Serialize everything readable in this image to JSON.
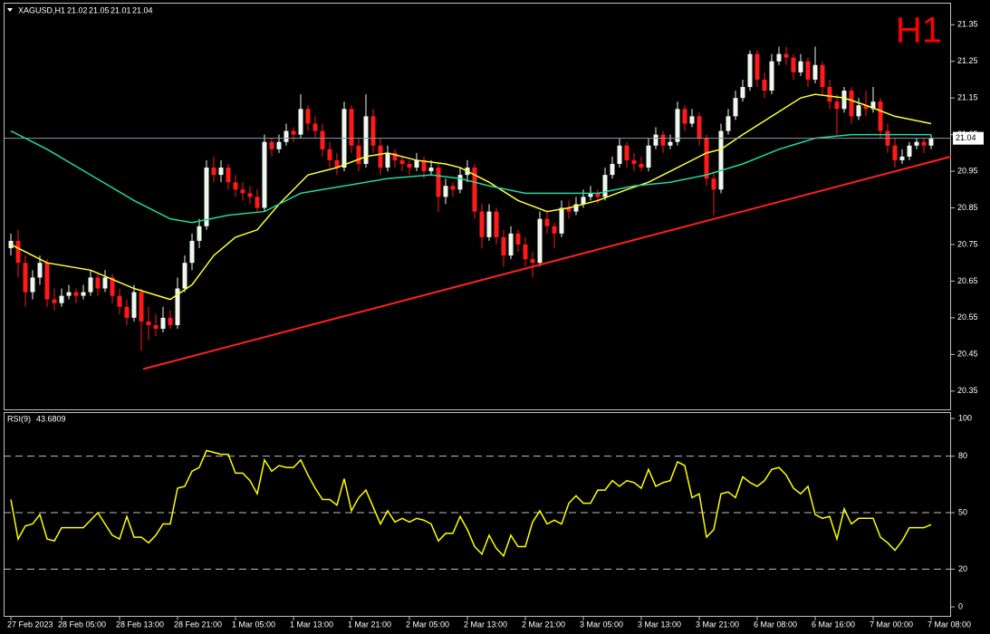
{
  "chart_data": [
    {
      "type": "candlestick",
      "title": "XAGUSD,H1",
      "timeframe": "H1",
      "categories": [
        "27 Feb 2023",
        null,
        null,
        null,
        null,
        null,
        null,
        "28 Feb 05:00",
        null,
        null,
        null,
        null,
        null,
        null,
        null,
        "28 Feb 13:00",
        null,
        null,
        null,
        null,
        null,
        null,
        null,
        "28 Feb 21:00",
        null,
        null,
        null,
        null,
        null,
        null,
        null,
        "1 Mar 05:00",
        null,
        null,
        null,
        null,
        null,
        null,
        null,
        "1 Mar 13:00",
        null,
        null,
        null,
        null,
        null,
        null,
        null,
        "1 Mar 21:00",
        null,
        null,
        null,
        null,
        null,
        null,
        null,
        "2 Mar 05:00",
        null,
        null,
        null,
        null,
        null,
        null,
        null,
        "2 Mar 13:00",
        null,
        null,
        null,
        null,
        null,
        null,
        null,
        "2 Mar 21:00",
        null,
        null,
        null,
        null,
        null,
        null,
        null,
        "3 Mar 05:00",
        null,
        null,
        null,
        null,
        null,
        null,
        null,
        "3 Mar 13:00",
        null,
        null,
        null,
        null,
        null,
        null,
        null,
        "3 Mar 21:00",
        null,
        null,
        null,
        null,
        null,
        null,
        null,
        "6 Mar 08:00",
        null,
        null,
        null,
        null,
        null,
        null,
        null,
        "6 Mar 16:00",
        null,
        null,
        null,
        null,
        null,
        null,
        null,
        "7 Mar 00:00",
        null,
        null,
        null,
        null,
        null,
        null,
        null,
        "7 Mar 08:00"
      ],
      "candles": [
        [
          20.74,
          20.78,
          20.72,
          20.76
        ],
        [
          20.76,
          20.79,
          20.66,
          20.7
        ],
        [
          20.7,
          20.72,
          20.58,
          20.62
        ],
        [
          20.62,
          20.68,
          20.6,
          20.66
        ],
        [
          20.66,
          20.72,
          20.64,
          20.7
        ],
        [
          20.7,
          20.71,
          20.58,
          20.6
        ],
        [
          20.6,
          20.63,
          20.57,
          20.59
        ],
        [
          20.59,
          20.63,
          20.58,
          20.61
        ],
        [
          20.61,
          20.64,
          20.6,
          20.62
        ],
        [
          20.62,
          20.63,
          20.59,
          20.61
        ],
        [
          20.61,
          20.64,
          20.6,
          20.62
        ],
        [
          20.62,
          20.68,
          20.61,
          20.66
        ],
        [
          20.66,
          20.67,
          20.61,
          20.63
        ],
        [
          20.63,
          20.68,
          20.62,
          20.66
        ],
        [
          20.66,
          20.67,
          20.59,
          20.61
        ],
        [
          20.61,
          20.63,
          20.56,
          20.58
        ],
        [
          20.58,
          20.6,
          20.53,
          20.55
        ],
        [
          20.55,
          20.64,
          20.54,
          20.62
        ],
        [
          20.62,
          20.63,
          20.46,
          20.54
        ],
        [
          20.54,
          20.58,
          20.49,
          20.53
        ],
        [
          20.53,
          20.56,
          20.5,
          20.52
        ],
        [
          20.52,
          20.58,
          20.51,
          20.55
        ],
        [
          20.55,
          20.57,
          20.52,
          20.53
        ],
        [
          20.53,
          20.66,
          20.52,
          20.63
        ],
        [
          20.63,
          20.72,
          20.62,
          20.7
        ],
        [
          20.7,
          20.78,
          20.68,
          20.76
        ],
        [
          20.76,
          20.82,
          20.74,
          20.8
        ],
        [
          20.8,
          20.98,
          20.79,
          20.96
        ],
        [
          20.96,
          20.99,
          20.92,
          20.94
        ],
        [
          20.94,
          20.98,
          20.92,
          20.96
        ],
        [
          20.96,
          20.97,
          20.9,
          20.92
        ],
        [
          20.92,
          20.94,
          20.88,
          20.9
        ],
        [
          20.9,
          20.92,
          20.87,
          20.89
        ],
        [
          20.89,
          20.91,
          20.86,
          20.88
        ],
        [
          20.88,
          20.9,
          20.84,
          20.85
        ],
        [
          20.85,
          21.05,
          20.84,
          21.03
        ],
        [
          21.03,
          21.04,
          20.99,
          21.01
        ],
        [
          21.01,
          21.05,
          21.0,
          21.03
        ],
        [
          21.03,
          21.08,
          21.02,
          21.06
        ],
        [
          21.06,
          21.07,
          21.03,
          21.05
        ],
        [
          21.05,
          21.16,
          21.04,
          21.12
        ],
        [
          21.12,
          21.13,
          21.06,
          21.08
        ],
        [
          21.08,
          21.1,
          21.04,
          21.06
        ],
        [
          21.06,
          21.08,
          20.99,
          21.01
        ],
        [
          21.01,
          21.03,
          20.96,
          20.98
        ],
        [
          20.98,
          21.0,
          20.94,
          20.96
        ],
        [
          20.96,
          21.14,
          20.95,
          21.12
        ],
        [
          21.12,
          21.13,
          21.0,
          21.02
        ],
        [
          21.02,
          21.04,
          20.95,
          20.97
        ],
        [
          20.97,
          21.16,
          20.96,
          21.1
        ],
        [
          21.1,
          21.12,
          21.0,
          21.02
        ],
        [
          21.02,
          21.04,
          20.94,
          20.96
        ],
        [
          20.96,
          21.02,
          20.95,
          21.0
        ],
        [
          21.0,
          21.01,
          20.96,
          20.98
        ],
        [
          20.98,
          20.99,
          20.95,
          20.97
        ],
        [
          20.97,
          20.98,
          20.94,
          20.96
        ],
        [
          20.96,
          21.0,
          20.95,
          20.98
        ],
        [
          20.98,
          20.99,
          20.93,
          20.95
        ],
        [
          20.95,
          20.98,
          20.94,
          20.96
        ],
        [
          20.96,
          20.97,
          20.84,
          20.88
        ],
        [
          20.88,
          20.93,
          20.86,
          20.91
        ],
        [
          20.91,
          20.92,
          20.88,
          20.9
        ],
        [
          20.9,
          20.96,
          20.89,
          20.94
        ],
        [
          20.94,
          20.98,
          20.92,
          20.96
        ],
        [
          20.96,
          20.97,
          20.82,
          20.84
        ],
        [
          20.84,
          20.86,
          20.74,
          20.77
        ],
        [
          20.77,
          20.86,
          20.76,
          20.84
        ],
        [
          20.84,
          20.85,
          20.75,
          20.77
        ],
        [
          20.77,
          20.79,
          20.69,
          20.72
        ],
        [
          20.72,
          20.8,
          20.71,
          20.78
        ],
        [
          20.78,
          20.79,
          20.73,
          20.75
        ],
        [
          20.75,
          20.77,
          20.69,
          20.71
        ],
        [
          20.71,
          20.73,
          20.66,
          20.7
        ],
        [
          20.7,
          20.84,
          20.69,
          20.82
        ],
        [
          20.82,
          20.84,
          20.78,
          20.8
        ],
        [
          20.8,
          20.81,
          20.74,
          20.78
        ],
        [
          20.78,
          20.87,
          20.77,
          20.85
        ],
        [
          20.85,
          20.87,
          20.82,
          20.84
        ],
        [
          20.84,
          20.88,
          20.83,
          20.86
        ],
        [
          20.86,
          20.9,
          20.85,
          20.88
        ],
        [
          20.88,
          20.91,
          20.87,
          20.89
        ],
        [
          20.89,
          20.9,
          20.86,
          20.88
        ],
        [
          20.88,
          20.96,
          20.87,
          20.94
        ],
        [
          20.94,
          20.99,
          20.93,
          20.97
        ],
        [
          20.97,
          21.04,
          20.96,
          21.02
        ],
        [
          21.02,
          21.03,
          20.96,
          20.98
        ],
        [
          20.98,
          21.0,
          20.95,
          20.97
        ],
        [
          20.97,
          20.99,
          20.95,
          20.96
        ],
        [
          20.96,
          21.04,
          20.95,
          21.02
        ],
        [
          21.02,
          21.07,
          21.01,
          21.05
        ],
        [
          21.05,
          21.06,
          21.0,
          21.02
        ],
        [
          21.02,
          21.05,
          21.01,
          21.03
        ],
        [
          21.03,
          21.14,
          21.02,
          21.12
        ],
        [
          21.12,
          21.13,
          21.06,
          21.08
        ],
        [
          21.08,
          21.12,
          21.07,
          21.1
        ],
        [
          21.1,
          21.11,
          21.02,
          21.04
        ],
        [
          21.04,
          21.05,
          20.91,
          20.93
        ],
        [
          20.93,
          20.95,
          20.83,
          20.9
        ],
        [
          20.9,
          21.08,
          20.89,
          21.06
        ],
        [
          21.06,
          21.12,
          21.05,
          21.1
        ],
        [
          21.1,
          21.17,
          21.09,
          21.15
        ],
        [
          21.15,
          21.2,
          21.14,
          21.18
        ],
        [
          21.18,
          21.28,
          21.17,
          21.27
        ],
        [
          21.27,
          21.28,
          21.18,
          21.2
        ],
        [
          21.2,
          21.22,
          21.15,
          21.17
        ],
        [
          21.17,
          21.27,
          21.16,
          21.25
        ],
        [
          21.25,
          21.29,
          21.24,
          21.27
        ],
        [
          21.27,
          21.29,
          21.24,
          21.26
        ],
        [
          21.26,
          21.27,
          21.2,
          21.22
        ],
        [
          21.22,
          21.27,
          21.21,
          21.25
        ],
        [
          21.25,
          21.26,
          21.18,
          21.2
        ],
        [
          21.2,
          21.29,
          21.19,
          21.24
        ],
        [
          21.24,
          21.25,
          21.16,
          21.18
        ],
        [
          21.18,
          21.2,
          21.12,
          21.14
        ],
        [
          21.14,
          21.16,
          21.05,
          21.12
        ],
        [
          21.12,
          21.18,
          21.11,
          21.17
        ],
        [
          21.17,
          21.18,
          21.08,
          21.1
        ],
        [
          21.1,
          21.15,
          21.09,
          21.13
        ],
        [
          21.13,
          21.17,
          21.1,
          21.12
        ],
        [
          21.12,
          21.18,
          21.11,
          21.14
        ],
        [
          21.14,
          21.15,
          21.04,
          21.06
        ],
        [
          21.06,
          21.08,
          21.0,
          21.02
        ],
        [
          21.02,
          21.04,
          20.96,
          20.98
        ],
        [
          20.98,
          21.01,
          20.97,
          20.99
        ],
        [
          20.99,
          21.03,
          20.98,
          21.02
        ],
        [
          21.02,
          21.04,
          21.01,
          21.03
        ],
        [
          21.03,
          21.04,
          21.0,
          21.02
        ],
        [
          21.02,
          21.05,
          21.01,
          21.04
        ]
      ],
      "bull_color": "#eef8ee",
      "bear_color": "#ff1a1a",
      "ylim": [
        20.3,
        21.41
      ],
      "yticks": [
        21.35,
        21.25,
        21.15,
        21.05,
        20.95,
        20.85,
        20.75,
        20.65,
        20.55,
        20.45,
        20.35
      ],
      "overlays": [
        {
          "color": "#ffff33",
          "x": [
            0,
            5,
            11,
            17,
            22,
            25,
            28,
            31,
            34,
            37,
            41,
            45,
            49,
            52,
            56,
            60,
            62,
            66,
            70,
            74,
            77,
            81,
            85,
            88,
            92,
            96,
            98,
            101,
            105,
            109,
            111,
            115,
            118,
            122,
            127
          ],
          "values": [
            20.75,
            20.7,
            20.68,
            20.63,
            20.6,
            20.64,
            20.72,
            20.77,
            20.79,
            20.86,
            20.94,
            20.96,
            20.99,
            21.0,
            20.98,
            20.97,
            20.96,
            20.92,
            20.87,
            20.84,
            20.85,
            20.87,
            20.9,
            20.92,
            20.96,
            21.0,
            21.01,
            21.05,
            21.1,
            21.15,
            21.16,
            21.15,
            21.13,
            21.1,
            21.08
          ]
        },
        {
          "color": "#20d8a0",
          "x": [
            0,
            5,
            11,
            17,
            22,
            25,
            30,
            35,
            40,
            46,
            52,
            58,
            62,
            66,
            71,
            76,
            81,
            86,
            91,
            96,
            101,
            106,
            111,
            116,
            121,
            127
          ],
          "values": [
            21.06,
            21.01,
            20.94,
            20.87,
            20.82,
            20.81,
            20.83,
            20.84,
            20.89,
            20.91,
            20.93,
            20.94,
            20.93,
            20.91,
            20.89,
            20.89,
            20.89,
            20.91,
            20.92,
            20.94,
            20.97,
            21.01,
            21.04,
            21.05,
            21.05,
            21.05
          ]
        }
      ],
      "trendline": {
        "color": "#ff2020",
        "x": [
          18.25,
          129.75
        ],
        "values": [
          20.41,
          20.99
        ]
      }
    },
    {
      "type": "line",
      "title": "RSI(9)",
      "color": "#ffff00",
      "values": [
        57,
        36,
        43,
        44,
        49,
        36,
        35,
        42,
        42,
        42,
        42,
        46,
        50,
        44,
        38,
        36,
        48,
        37,
        37,
        34,
        38,
        44,
        44,
        63,
        64,
        72,
        74,
        83,
        82,
        81,
        81,
        71,
        71,
        67,
        60,
        78,
        72,
        75,
        74,
        74,
        78,
        70,
        63,
        57,
        57,
        54,
        68,
        51,
        58,
        62,
        53,
        44,
        51,
        45,
        47,
        45,
        47,
        46,
        44,
        35,
        39,
        39,
        48,
        41,
        32,
        28,
        38,
        31,
        27,
        38,
        32,
        32,
        45,
        51,
        44,
        46,
        44,
        55,
        59,
        55,
        55,
        62,
        62,
        67,
        64,
        67,
        66,
        63,
        73,
        64,
        66,
        67,
        77,
        75,
        58,
        60,
        37,
        41,
        60,
        61,
        58,
        69,
        66,
        64,
        67,
        73,
        74,
        70,
        63,
        60,
        64,
        49,
        47,
        48,
        36,
        52,
        44,
        47,
        47,
        47,
        37,
        34,
        30,
        35,
        42,
        42,
        42,
        43.6809
      ],
      "ylim": [
        -4.8,
        103.4
      ],
      "yticks": [
        0,
        20,
        50,
        80,
        100
      ],
      "levels": [
        20,
        50,
        80
      ]
    }
  ]
}
